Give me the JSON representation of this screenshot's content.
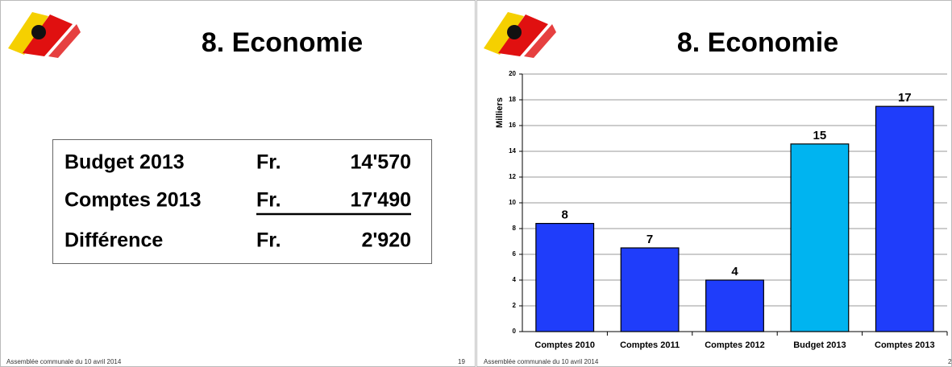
{
  "left_slide": {
    "title": "8. Economie",
    "table": {
      "rows": [
        [
          "Budget 2013",
          "Fr.",
          "14'570"
        ],
        [
          "Comptes 2013",
          "Fr.",
          "17'490"
        ],
        [
          "Différence",
          "Fr.",
          "2'920"
        ]
      ]
    },
    "footer": "Assemblée communale du 10 avril 2014",
    "page_number": "19"
  },
  "chart_data": {
    "type": "bar",
    "title": "8. Economie",
    "y_label": "Milliers",
    "categories": [
      "Comptes 2010",
      "Comptes 2011",
      "Comptes 2012",
      "Budget 2013",
      "Comptes 2013"
    ],
    "values": [
      8.4,
      6.5,
      4.0,
      14.57,
      17.49
    ],
    "value_labels": [
      "8",
      "7",
      "4",
      "15",
      "17"
    ],
    "colors": [
      "#1f3dfa",
      "#1f3dfa",
      "#1f3dfa",
      "#00b4f0",
      "#1f3dfa"
    ],
    "ylim": [
      0,
      20
    ],
    "yticks": [
      0,
      2,
      4,
      6,
      8,
      10,
      12,
      14,
      16,
      18,
      20
    ],
    "grid": true,
    "footer": "Assemblée communale du 10 avril 2014",
    "page_number": "2"
  }
}
